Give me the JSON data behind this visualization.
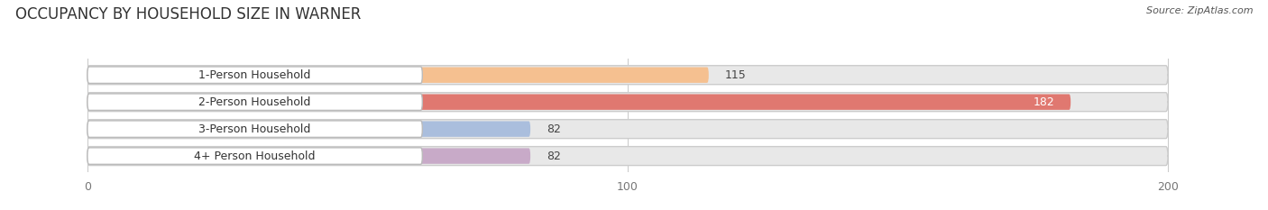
{
  "title": "OCCUPANCY BY HOUSEHOLD SIZE IN WARNER",
  "source": "Source: ZipAtlas.com",
  "categories": [
    "1-Person Household",
    "2-Person Household",
    "3-Person Household",
    "4+ Person Household"
  ],
  "values": [
    115,
    182,
    82,
    82
  ],
  "bar_colors": [
    "#F5C090",
    "#E07870",
    "#AABEDD",
    "#C8AAC8"
  ],
  "background_color": "#FFFFFF",
  "bar_bg_color": "#E8E8E8",
  "label_box_color": "#FFFFFF",
  "xlim": [
    -15,
    215
  ],
  "data_xlim": [
    0,
    200
  ],
  "xticks": [
    0,
    100,
    200
  ],
  "label_fontsize": 9,
  "title_fontsize": 12,
  "value_fontsize": 9,
  "value_color_inside": "#FFFFFF",
  "value_color_outside": "#444444",
  "inside_threshold": 150
}
